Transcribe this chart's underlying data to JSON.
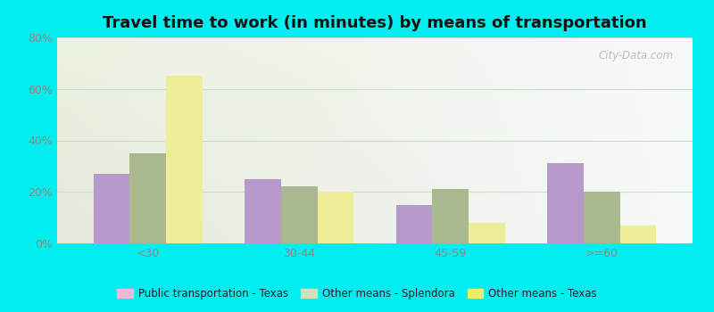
{
  "title": "Travel time to work (in minutes) by means of transportation",
  "categories": [
    "<30",
    "30-44",
    "45-59",
    ">=60"
  ],
  "series": {
    "Public transportation - Texas": [
      27,
      25,
      15,
      31
    ],
    "Other means - Splendora": [
      35,
      22,
      21,
      20
    ],
    "Other means - Texas": [
      65,
      20,
      8,
      7
    ]
  },
  "bar_colors": {
    "Public transportation - Texas": "#b899cc",
    "Other means - Splendora": "#aab890",
    "Other means - Texas": "#eeee99"
  },
  "legend_colors": {
    "Public transportation - Texas": "#f0b8d8",
    "Other means - Splendora": "#d0e0b8",
    "Other means - Texas": "#eeee66"
  },
  "ylim": [
    0,
    80
  ],
  "yticks": [
    0,
    20,
    40,
    60,
    80
  ],
  "ytick_labels": [
    "0%",
    "20%",
    "40%",
    "60%",
    "80%"
  ],
  "background_color": "#00EEEE",
  "title_fontsize": 13,
  "watermark": "City-Data.com",
  "grid_color": "#ccddcc",
  "tick_label_color": "#888888"
}
